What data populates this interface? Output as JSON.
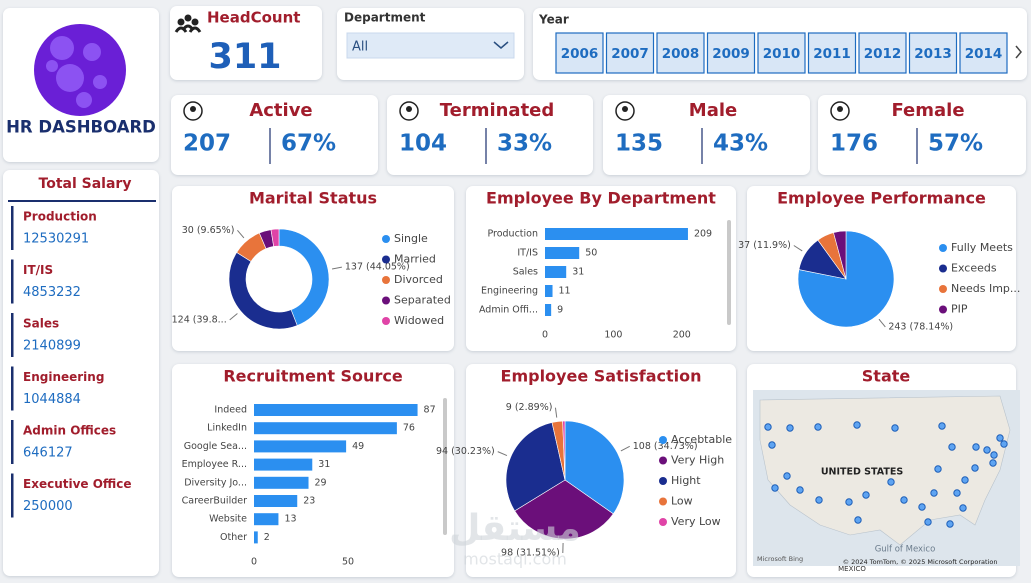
{
  "header": {
    "title": "HR DASHBOARD"
  },
  "headcount": {
    "label": "HeadCount",
    "value": 311
  },
  "department": {
    "label": "Department",
    "selected": "All"
  },
  "year": {
    "label": "Year",
    "options": [
      "2006",
      "2007",
      "2008",
      "2009",
      "2010",
      "2011",
      "2012",
      "2013",
      "2014"
    ]
  },
  "kpis": [
    {
      "label": "Active",
      "count": 207,
      "percent": "67%"
    },
    {
      "label": "Terminated",
      "count": 104,
      "percent": "33%"
    },
    {
      "label": "Male",
      "count": 135,
      "percent": "43%"
    },
    {
      "label": "Female",
      "count": 176,
      "percent": "57%"
    }
  ],
  "salary": {
    "title": "Total Salary",
    "items": [
      {
        "name": "Production",
        "value": 12530291
      },
      {
        "name": "IT/IS",
        "value": 4853232
      },
      {
        "name": "Sales",
        "value": 2140899
      },
      {
        "name": "Engineering",
        "value": 1044884
      },
      {
        "name": "Admin Offices",
        "value": 646127
      },
      {
        "name": "Executive Office",
        "value": 250000
      }
    ]
  },
  "chart_data": [
    {
      "type": "donut",
      "title": "Marital Status",
      "categories": [
        "Single",
        "Married",
        "Divorced",
        "Separated",
        "Widowed"
      ],
      "values": [
        137,
        124,
        30,
        12,
        8
      ],
      "value_labels": [
        "137 (44.05%)",
        "124 (39.8...",
        "30 (9.65%)",
        null,
        null
      ],
      "colors": [
        "#2b8ff0",
        "#1a2d8f",
        "#e8743b",
        "#6b0f7a",
        "#e044a7"
      ]
    },
    {
      "type": "bar",
      "title": "Employee By Department",
      "categories": [
        "Production",
        "IT/IS",
        "Sales",
        "Engineering",
        "Admin Offi..."
      ],
      "values": [
        209,
        50,
        31,
        11,
        9
      ],
      "color": "#2b8ff0",
      "xlim": [
        0,
        250
      ],
      "xticks": [
        0,
        100,
        200
      ]
    },
    {
      "type": "pie",
      "title": "Employee Performance",
      "categories": [
        "Fully Meets",
        "Exceeds",
        "Needs Imp...",
        "PIP"
      ],
      "values": [
        243,
        37,
        18,
        13
      ],
      "value_labels": [
        "243 (78.14%)",
        "37 (11.9%)",
        null,
        null
      ],
      "colors": [
        "#2b8ff0",
        "#1a2d8f",
        "#e8743b",
        "#6b0f7a"
      ]
    },
    {
      "type": "bar",
      "title": "Recruitment Source",
      "categories": [
        "Indeed",
        "LinkedIn",
        "Google Sea...",
        "Employee R...",
        "Diversity Jo...",
        "CareerBuilder",
        "Website",
        "Other"
      ],
      "values": [
        87,
        76,
        49,
        31,
        29,
        23,
        13,
        2
      ],
      "color": "#2b8ff0",
      "xlim": [
        0,
        100
      ],
      "xticks": [
        0,
        50
      ]
    },
    {
      "type": "pie",
      "title": "Employee Satisfaction",
      "categories": [
        "Accebtable",
        "Very High",
        "Hight",
        "Low",
        "Very Low"
      ],
      "values": [
        108,
        98,
        94,
        9,
        2
      ],
      "value_labels": [
        "108 (34.73%)",
        "98 (31.51%)",
        "94 (30.23%)",
        "9 (2.89%)",
        null
      ],
      "colors": [
        "#2b8ff0",
        "#6b0f7a",
        "#1a2d8f",
        "#e8743b",
        "#e044a7"
      ]
    }
  ],
  "map": {
    "title": "State",
    "country": "UNITED STATES",
    "sea": "Gulf of Mexico",
    "neighbor": "MEXICO",
    "credit": "© 2024 TomTom, © 2025 Microsoft Corporation",
    "provider": "Microsoft Bing"
  },
  "watermark": {
    "arabic": "مستقل",
    "latin": "mostaql.com"
  }
}
